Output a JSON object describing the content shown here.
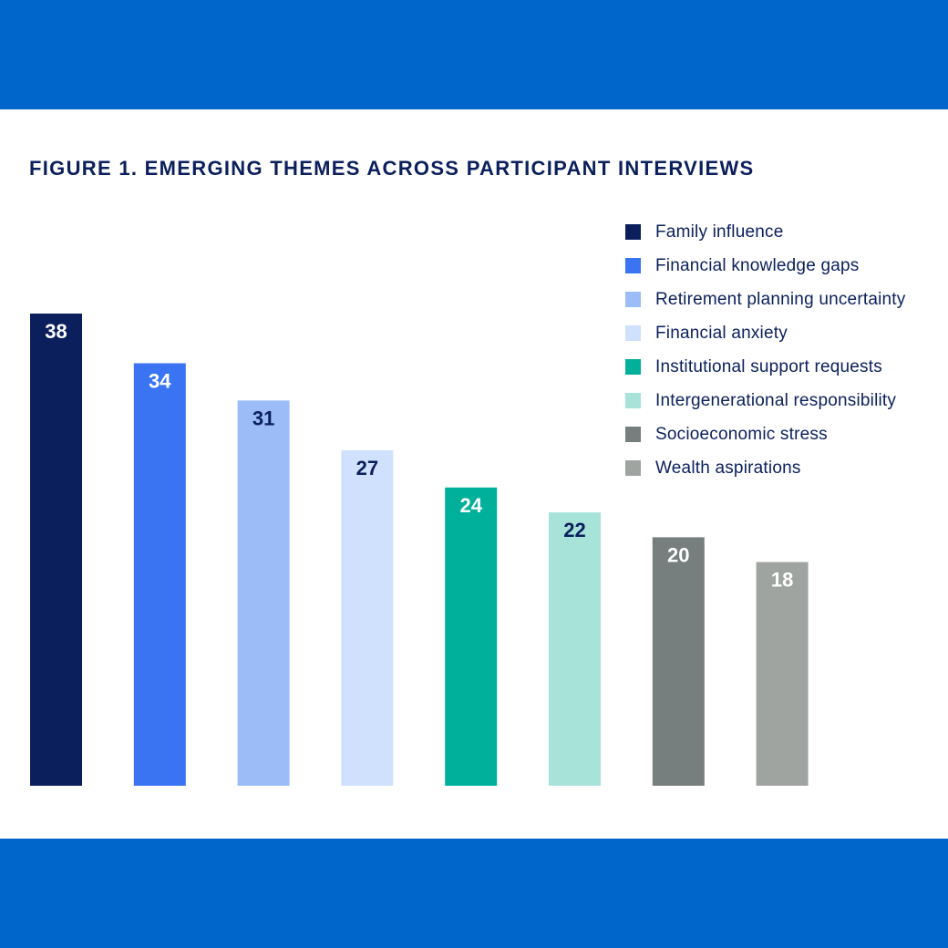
{
  "header": {
    "background_color": "#0066cc"
  },
  "footer": {
    "background_color": "#0066cc"
  },
  "figure": {
    "title": "FIGURE 1. EMERGING THEMES ACROSS PARTICIPANT INTERVIEWS"
  },
  "chart_data": {
    "type": "bar",
    "title": "FIGURE 1. EMERGING THEMES ACROSS PARTICIPANT INTERVIEWS",
    "xlabel": "",
    "ylabel": "",
    "ylim": [
      0,
      38
    ],
    "grid": false,
    "legend_placement": "top-right",
    "data_labels": "inside-top",
    "categories": [
      "Family influence",
      "Financial knowledge gaps",
      "Retirement planning uncertainty",
      "Financial anxiety",
      "Institutional support requests",
      "Intergenerational responsibility",
      "Socioeconomic stress",
      "Wealth aspirations"
    ],
    "values": [
      38,
      34,
      31,
      27,
      24,
      22,
      20,
      18
    ],
    "colors": [
      "#0b1f5c",
      "#3b74f2",
      "#9bbcf7",
      "#cfe1fc",
      "#00b09b",
      "#a8e3da",
      "#767e7e",
      "#a0a4a1"
    ],
    "label_colors": [
      "#ffffff",
      "#ffffff",
      "#0b1f5c",
      "#0b1f5c",
      "#ffffff",
      "#0b1f5c",
      "#ffffff",
      "#ffffff"
    ]
  }
}
